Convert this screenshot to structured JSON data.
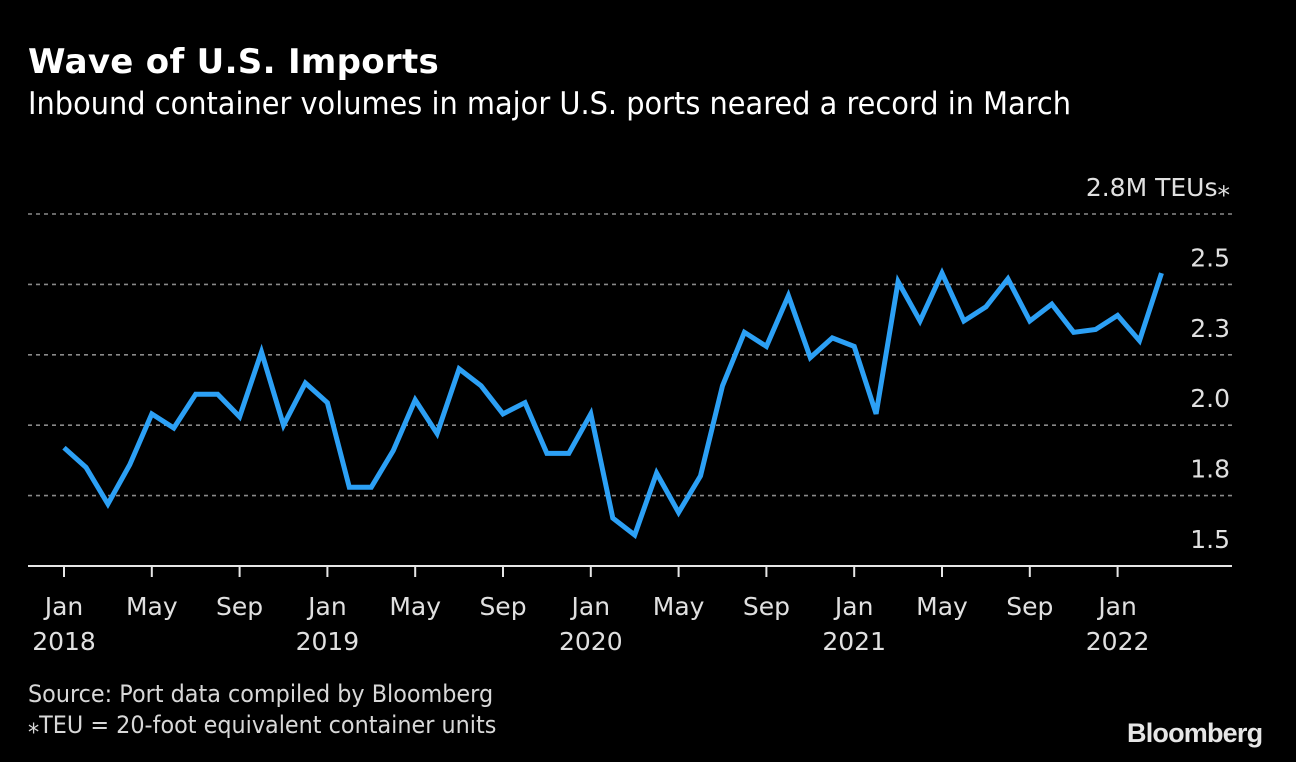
{
  "header": {
    "title": "Wave of U.S. Imports",
    "subtitle": "Inbound container volumes in major U.S. ports neared a record in March"
  },
  "footer": {
    "source": "Source: Port data compiled by Bloomberg",
    "note": "⁎TEU = 20-foot equivalent container units",
    "logo": "Bloomberg"
  },
  "colors": {
    "background": "#000000",
    "line": "#2ca0f5",
    "grid": "#8a8a8a",
    "text": "#e0e0e0"
  },
  "chart_data": {
    "type": "line",
    "title": "Wave of U.S. Imports",
    "subtitle": "Inbound container volumes in major U.S. ports neared a record in March",
    "xlabel": "",
    "ylabel": "TEUs",
    "unit_label": "2.8M TEUs⁎",
    "ylim": [
      1.5,
      2.75
    ],
    "y_ticks": [
      {
        "value": 2.5,
        "label": "2.5"
      },
      {
        "value": 2.25,
        "label": "2.3"
      },
      {
        "value": 2.0,
        "label": "2.0"
      },
      {
        "value": 1.75,
        "label": "1.8"
      },
      {
        "value": 1.5,
        "label": "1.5"
      }
    ],
    "top_gridline": 2.75,
    "grid": true,
    "x_start": "2018-01",
    "x_ticks": [
      {
        "month_index": 0,
        "label": "Jan",
        "year": "2018"
      },
      {
        "month_index": 4,
        "label": "May",
        "year": ""
      },
      {
        "month_index": 8,
        "label": "Sep",
        "year": ""
      },
      {
        "month_index": 12,
        "label": "Jan",
        "year": "2019"
      },
      {
        "month_index": 16,
        "label": "May",
        "year": ""
      },
      {
        "month_index": 20,
        "label": "Sep",
        "year": ""
      },
      {
        "month_index": 24,
        "label": "Jan",
        "year": "2020"
      },
      {
        "month_index": 28,
        "label": "May",
        "year": ""
      },
      {
        "month_index": 32,
        "label": "Sep",
        "year": ""
      },
      {
        "month_index": 36,
        "label": "Jan",
        "year": "2021"
      },
      {
        "month_index": 40,
        "label": "May",
        "year": ""
      },
      {
        "month_index": 44,
        "label": "Sep",
        "year": ""
      },
      {
        "month_index": 48,
        "label": "Jan",
        "year": "2022"
      }
    ],
    "x_max_month_index": 53.2,
    "series": [
      {
        "name": "Inbound container volumes (M TEUs)",
        "x": [
          "2018-01",
          "2018-02",
          "2018-03",
          "2018-04",
          "2018-05",
          "2018-06",
          "2018-07",
          "2018-08",
          "2018-09",
          "2018-10",
          "2018-11",
          "2018-12",
          "2019-01",
          "2019-02",
          "2019-03",
          "2019-04",
          "2019-05",
          "2019-06",
          "2019-07",
          "2019-08",
          "2019-09",
          "2019-10",
          "2019-11",
          "2019-12",
          "2020-01",
          "2020-02",
          "2020-03",
          "2020-04",
          "2020-05",
          "2020-06",
          "2020-07",
          "2020-08",
          "2020-09",
          "2020-10",
          "2020-11",
          "2020-12",
          "2021-01",
          "2021-02",
          "2021-03",
          "2021-04",
          "2021-05",
          "2021-06",
          "2021-07",
          "2021-08",
          "2021-09",
          "2021-10",
          "2021-11",
          "2021-12",
          "2022-01",
          "2022-02",
          "2022-03"
        ],
        "values": [
          1.92,
          1.85,
          1.72,
          1.86,
          2.04,
          1.99,
          2.11,
          2.11,
          2.03,
          2.26,
          2.0,
          2.15,
          2.08,
          1.78,
          1.78,
          1.91,
          2.09,
          1.97,
          2.2,
          2.14,
          2.04,
          2.08,
          1.9,
          1.9,
          2.04,
          1.67,
          1.61,
          1.83,
          1.69,
          1.82,
          2.14,
          2.33,
          2.28,
          2.46,
          2.24,
          2.31,
          2.28,
          2.04,
          2.51,
          2.37,
          2.54,
          2.37,
          2.42,
          2.52,
          2.37,
          2.43,
          2.33,
          2.34,
          2.39,
          2.3,
          2.54
        ]
      }
    ],
    "legend": "none",
    "annotations": []
  }
}
